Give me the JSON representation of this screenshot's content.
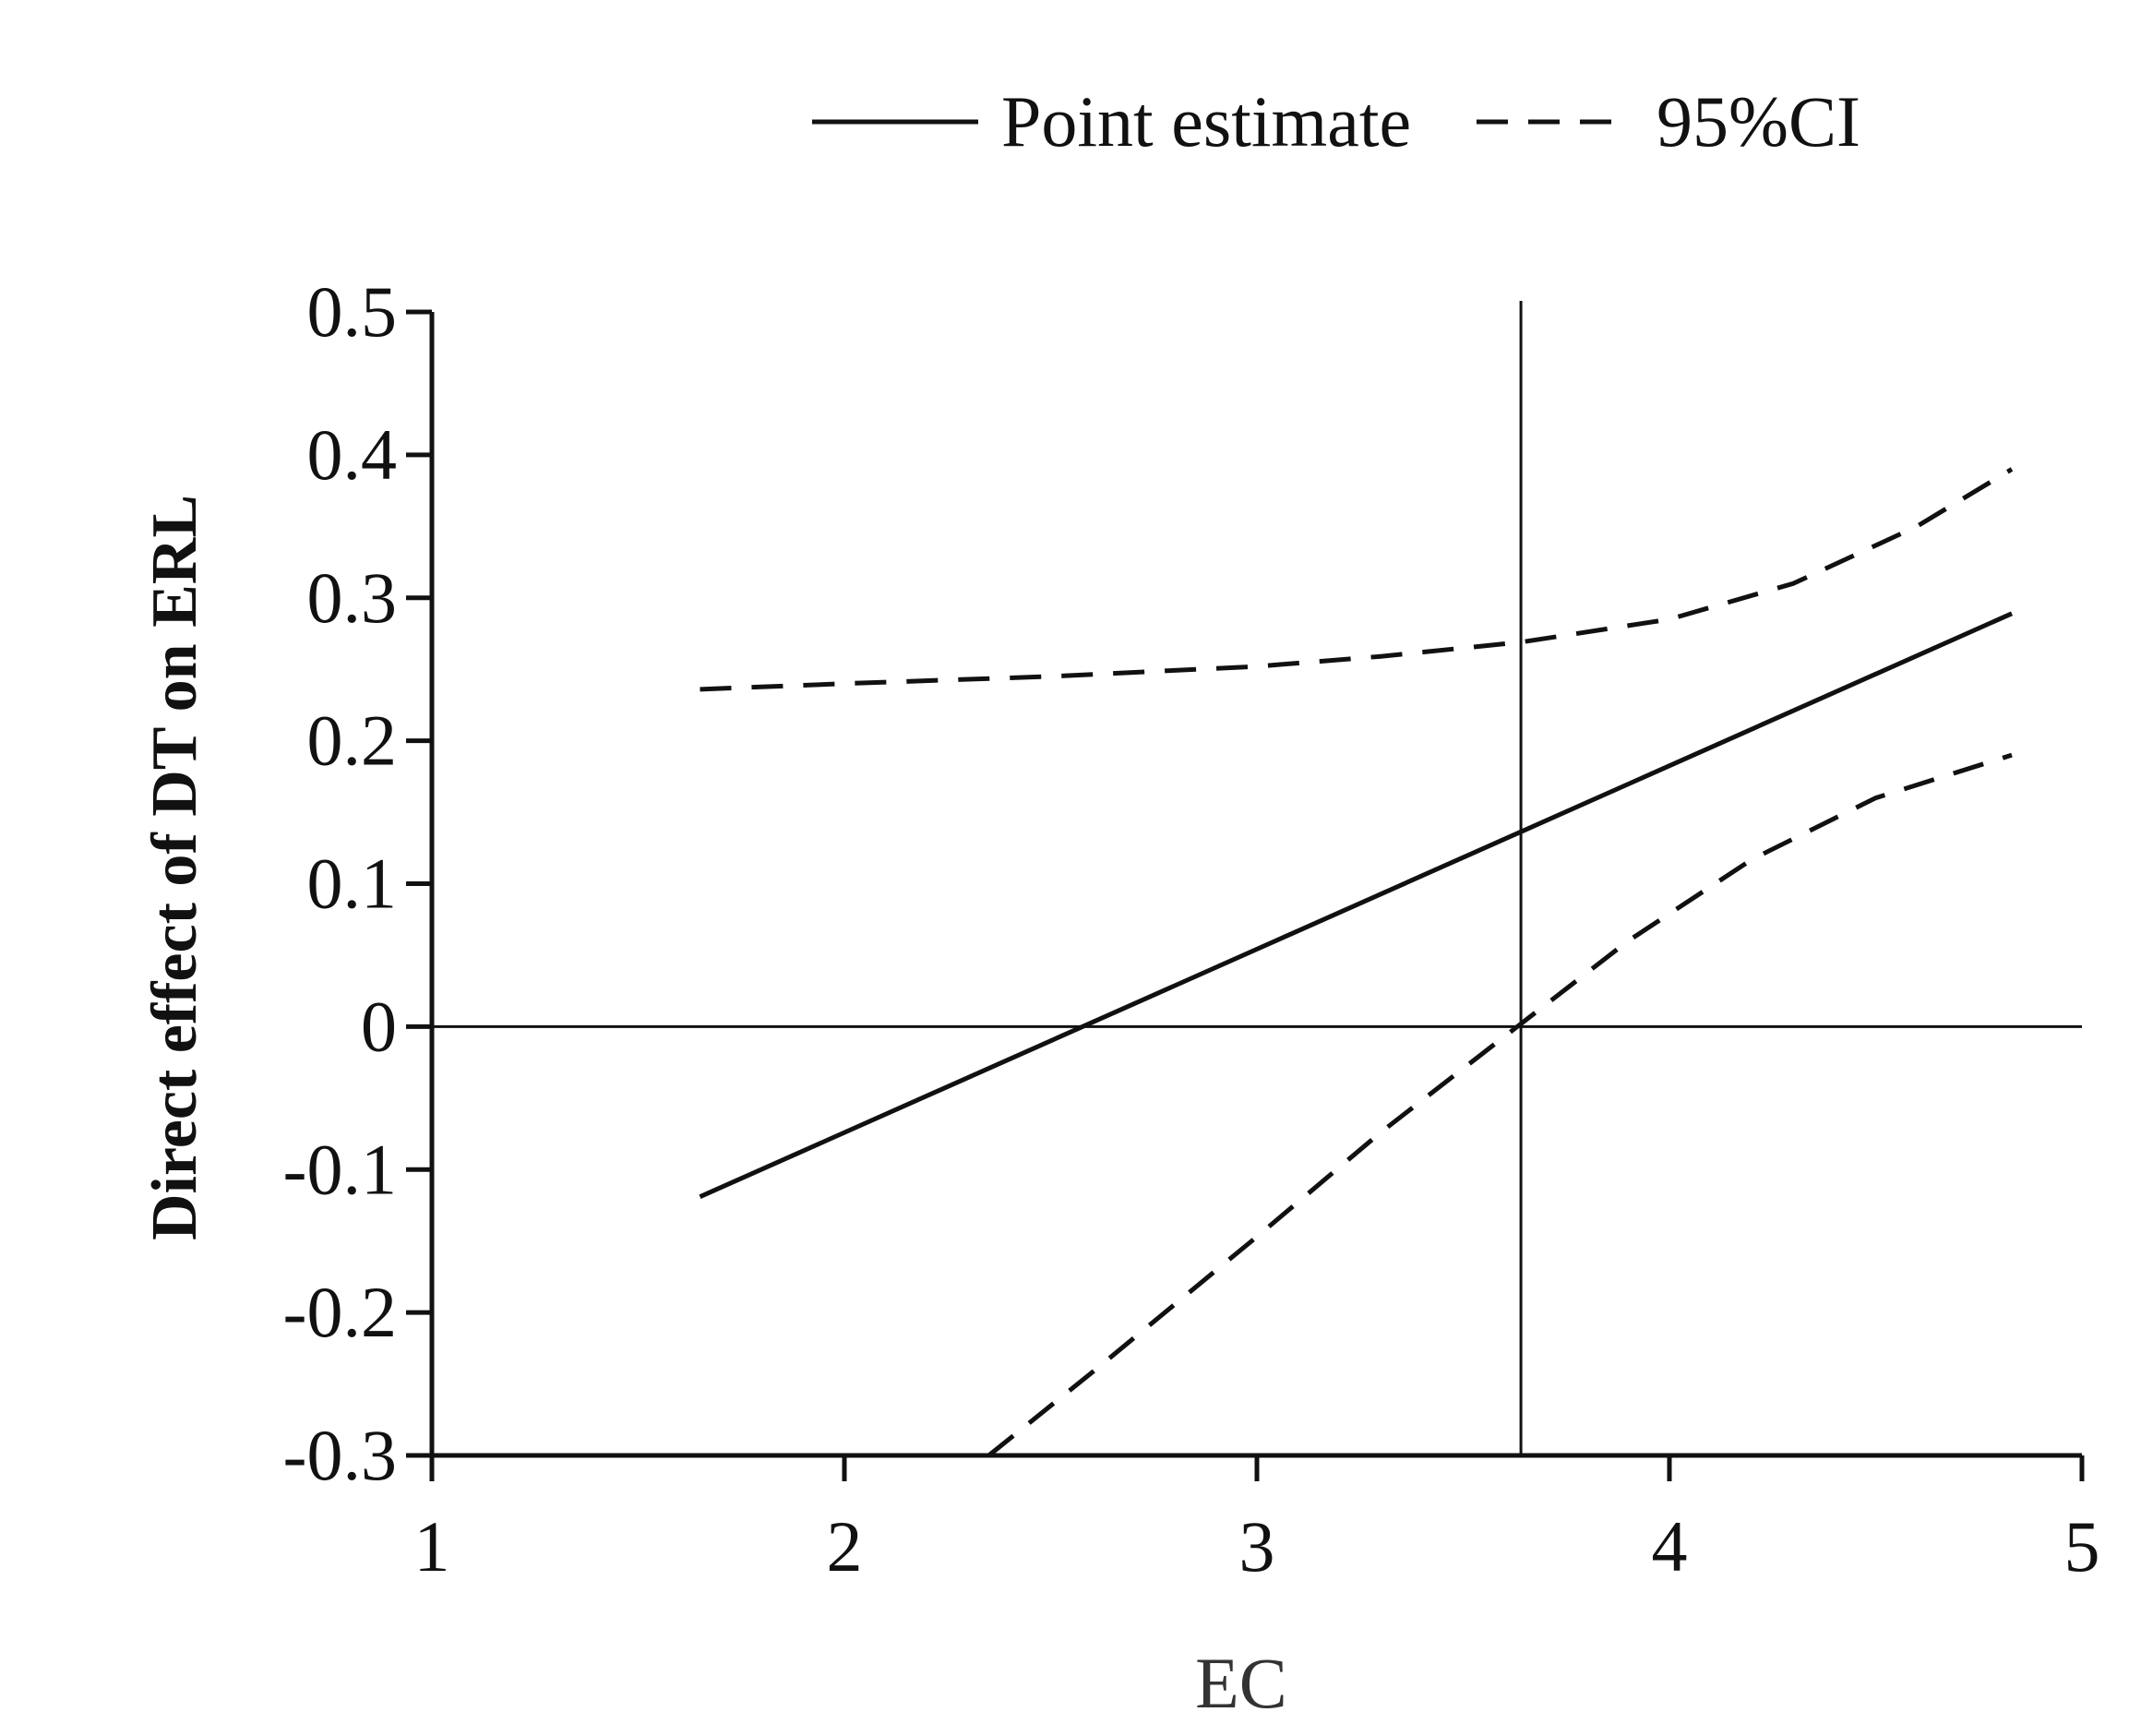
{
  "chart_data": {
    "type": "line",
    "title": "",
    "xlabel": "EC",
    "ylabel": "Direct effect of DT on ERL",
    "xlim": [
      1,
      5
    ],
    "ylim": [
      -0.3,
      0.5
    ],
    "x_ticks": [
      1,
      2,
      3,
      4,
      5
    ],
    "y_ticks": [
      0.5,
      0.4,
      0.3,
      0.2,
      0.1,
      0,
      -0.1,
      -0.2,
      -0.3
    ],
    "x_tick_labels": [
      "1",
      "2",
      "3",
      "4",
      "5"
    ],
    "y_tick_labels": [
      "0.5",
      "0.4",
      "0.3",
      "0.2",
      "0.1",
      "0",
      "-0.1",
      "-0.2",
      "-0.3"
    ],
    "reference_lines": {
      "horizontal_y": 0,
      "vertical_x": 3.64
    },
    "legend": {
      "placement": "top",
      "entries": [
        "Point estimate",
        "95%CI"
      ]
    },
    "grid": false,
    "series": [
      {
        "name": "Point estimate",
        "style": "solid",
        "x": [
          1.65,
          4.83
        ],
        "y": [
          -0.119,
          0.289
        ]
      },
      {
        "name": "95%CI",
        "style": "dashed",
        "x": [
          1.65,
          2.0,
          2.5,
          3.0,
          3.3,
          3.64,
          4.0,
          4.3,
          4.6,
          4.83
        ],
        "y": [
          0.236,
          0.24,
          0.245,
          0.252,
          0.259,
          0.269,
          0.285,
          0.31,
          0.35,
          0.39
        ]
      },
      {
        "name": "95%CI",
        "style": "dashed",
        "x": [
          2.35,
          2.6,
          3.0,
          3.3,
          3.64,
          3.9,
          4.2,
          4.5,
          4.83
        ],
        "y": [
          -0.3,
          -0.242,
          -0.147,
          -0.074,
          0.002,
          0.06,
          0.117,
          0.16,
          0.19
        ]
      }
    ]
  }
}
